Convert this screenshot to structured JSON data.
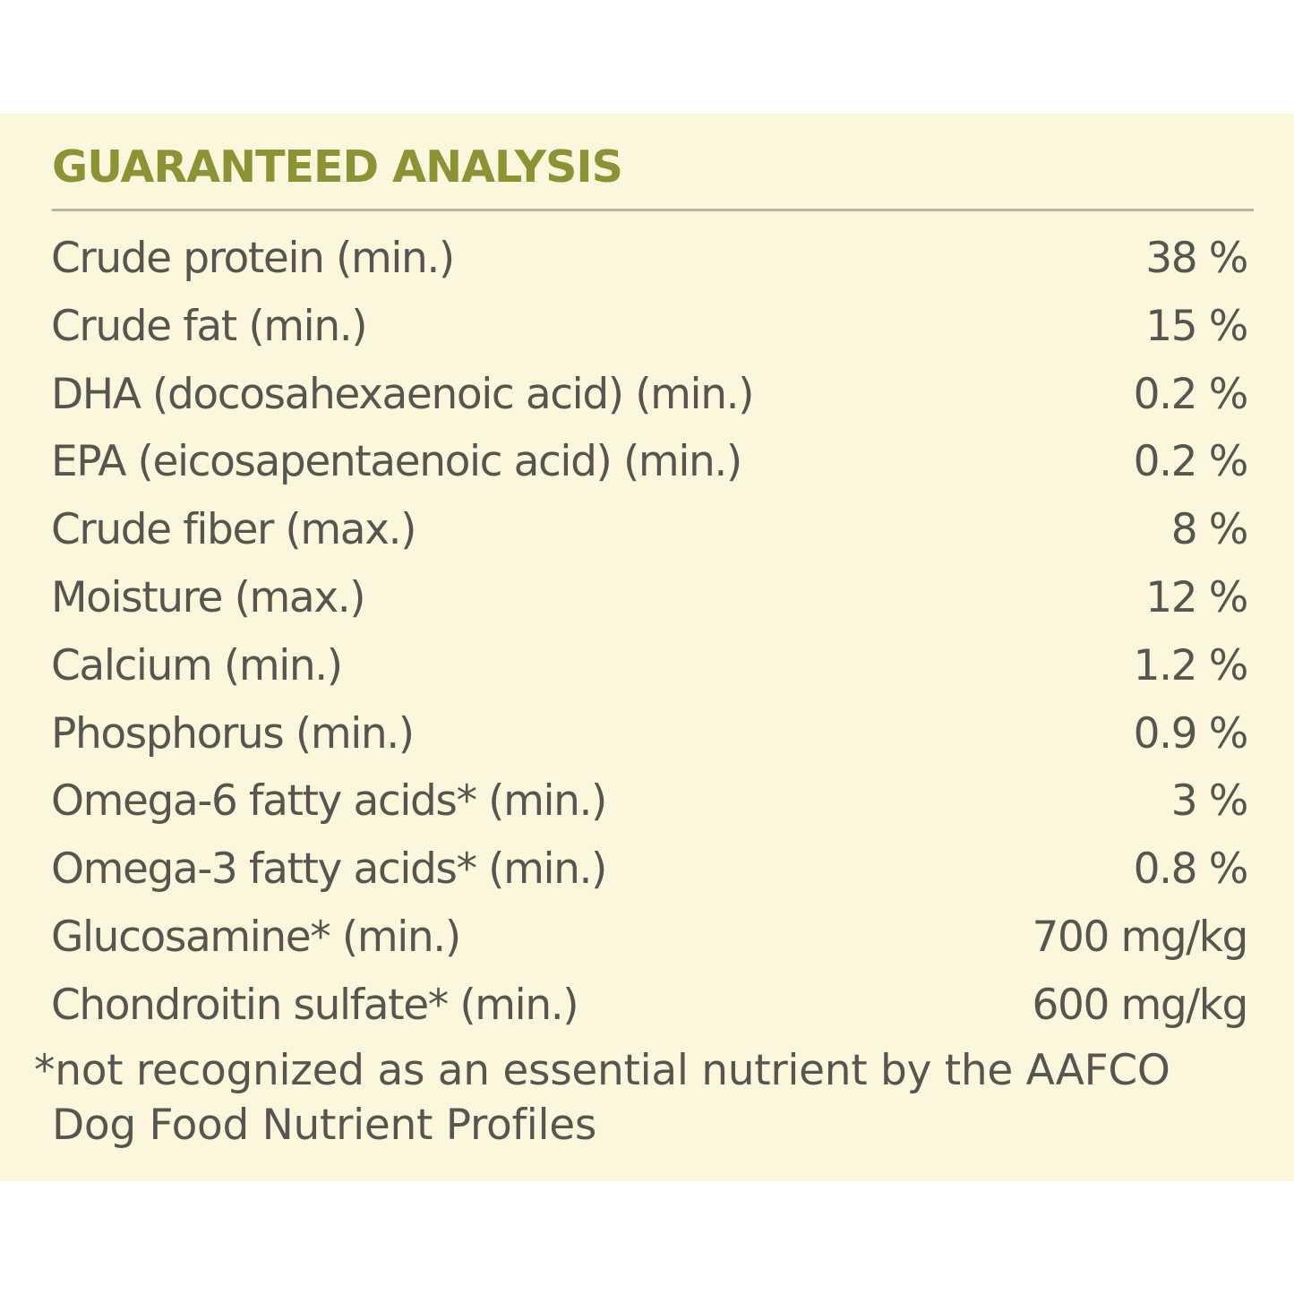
{
  "panel": {
    "title": "GUARANTEED ANALYSIS",
    "background": "#fcf6dd",
    "title_color": "#8a9434",
    "text_color": "#56564f",
    "rows": [
      {
        "label": "Crude protein (min.)",
        "value": "38 %"
      },
      {
        "label": "Crude fat (min.)",
        "value": "15 %"
      },
      {
        "label": "DHA (docosahexaenoic acid) (min.)",
        "value": "0.2 %"
      },
      {
        "label": "EPA (eicosapentaenoic acid) (min.)",
        "value": "0.2 %"
      },
      {
        "label": "Crude fiber (max.)",
        "value": "8 %"
      },
      {
        "label": "Moisture (max.)",
        "value": "12 %"
      },
      {
        "label": "Calcium (min.)",
        "value": "1.2 %"
      },
      {
        "label": "Phosphorus (min.)",
        "value": "0.9 %"
      },
      {
        "label": "Omega-6 fatty acids* (min.)",
        "value": "3 %"
      },
      {
        "label": "Omega-3 fatty acids* (min.)",
        "value": "0.8 %"
      },
      {
        "label": "Glucosamine* (min.)",
        "value": "700 mg/kg"
      },
      {
        "label": "Chondroitin sulfate* (min.)",
        "value": "600 mg/kg"
      }
    ],
    "footnote_line1": "*not recognized as an essential nutrient by the AAFCO",
    "footnote_line2": "Dog Food Nutrient Profiles"
  }
}
